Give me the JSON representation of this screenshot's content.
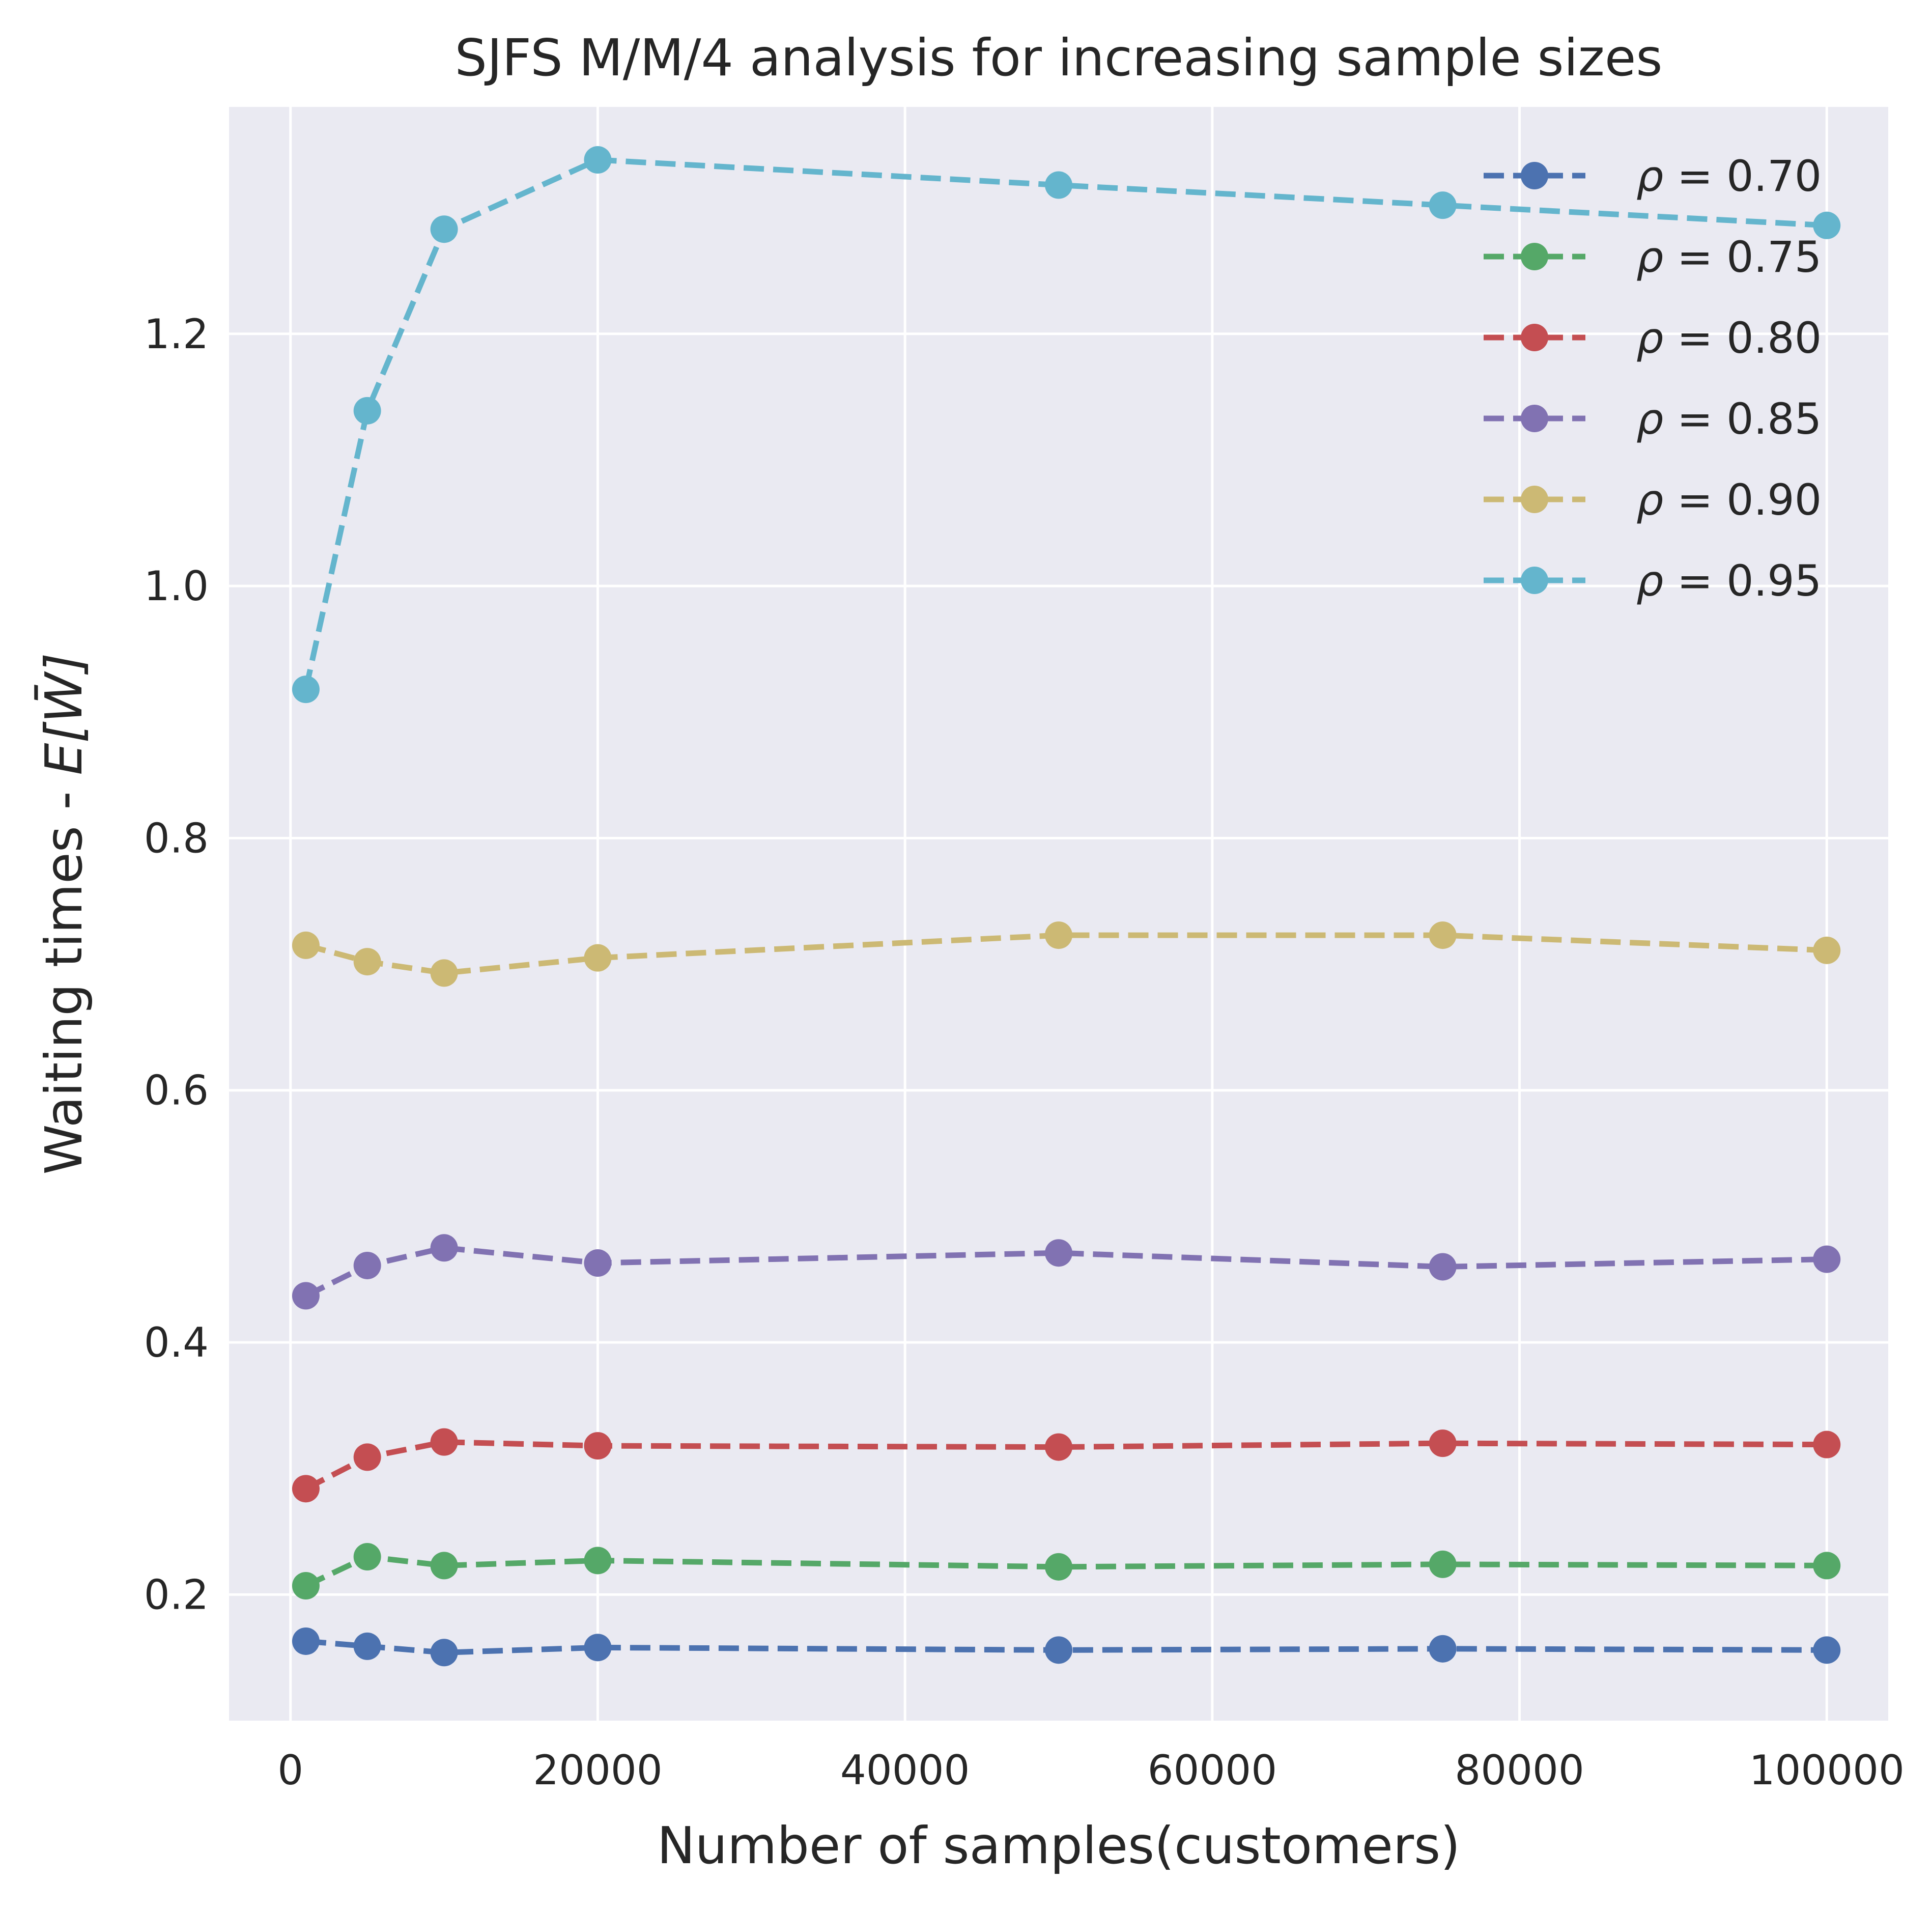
{
  "chart_data": {
    "type": "line",
    "title": "SJFS M/M/4 analysis for increasing sample sizes",
    "xlabel": "Number of samples(customers)",
    "ylabel_text": "Waiting times - ",
    "ylabel_symbol": "E[W̄]",
    "x": [
      1000,
      5000,
      10000,
      20000,
      50000,
      75000,
      100000
    ],
    "xlim": [
      -4000,
      104000
    ],
    "ylim": [
      0.1,
      1.38
    ],
    "xticks": [
      0,
      20000,
      40000,
      60000,
      80000,
      100000
    ],
    "xtick_labels": [
      "0",
      "20000",
      "40000",
      "60000",
      "80000",
      "100000"
    ],
    "yticks": [
      0.2,
      0.4,
      0.6,
      0.8,
      1.0,
      1.2
    ],
    "ytick_labels": [
      "0.2",
      "0.4",
      "0.6",
      "0.8",
      "1.0",
      "1.2"
    ],
    "grid": true,
    "legend_position": "top-right",
    "line_style": "dashed",
    "marker": "circle",
    "series": [
      {
        "name": "ρ = 0.70",
        "symbol": "ρ",
        "value_label": " = 0.70",
        "color": "#4c72b0",
        "values": [
          0.163,
          0.159,
          0.154,
          0.158,
          0.156,
          0.157,
          0.156
        ]
      },
      {
        "name": "ρ = 0.75",
        "symbol": "ρ",
        "value_label": " = 0.75",
        "color": "#55a868",
        "values": [
          0.207,
          0.23,
          0.223,
          0.227,
          0.222,
          0.224,
          0.223
        ]
      },
      {
        "name": "ρ = 0.80",
        "symbol": "ρ",
        "value_label": " = 0.80",
        "color": "#c44e52",
        "values": [
          0.284,
          0.309,
          0.321,
          0.318,
          0.317,
          0.32,
          0.319
        ]
      },
      {
        "name": "ρ = 0.85",
        "symbol": "ρ",
        "value_label": " = 0.85",
        "color": "#8172b2",
        "values": [
          0.437,
          0.461,
          0.475,
          0.463,
          0.471,
          0.46,
          0.466
        ]
      },
      {
        "name": "ρ = 0.90",
        "symbol": "ρ",
        "value_label": " = 0.90",
        "color": "#ccb974",
        "values": [
          0.715,
          0.702,
          0.693,
          0.705,
          0.723,
          0.723,
          0.711
        ]
      },
      {
        "name": "ρ = 0.95",
        "symbol": "ρ",
        "value_label": " = 0.95",
        "color": "#64b5cd",
        "values": [
          0.918,
          1.139,
          1.283,
          1.338,
          1.318,
          1.302,
          1.286
        ]
      }
    ]
  }
}
